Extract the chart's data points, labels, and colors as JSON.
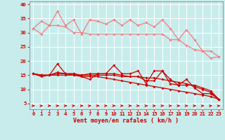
{
  "xlabel": "Vent moyen/en rafales ( km/h )",
  "xlim": [
    -0.5,
    23.5
  ],
  "ylim": [
    3,
    41
  ],
  "yticks": [
    5,
    10,
    15,
    20,
    25,
    30,
    35,
    40
  ],
  "xticks": [
    0,
    1,
    2,
    3,
    4,
    5,
    6,
    7,
    8,
    9,
    10,
    11,
    12,
    13,
    14,
    15,
    16,
    17,
    18,
    19,
    20,
    21,
    22,
    23
  ],
  "background_color": "#c8ecec",
  "grid_color": "#ffffff",
  "line_color_light": "#f08080",
  "line_color_dark": "#cc0000",
  "series_light": [
    [
      31.5,
      34.0,
      32.5,
      37.5,
      32.5,
      34.5,
      29.5,
      34.5,
      34.0,
      33.0,
      34.5,
      32.5,
      34.5,
      32.5,
      33.5,
      32.0,
      34.5,
      31.5,
      27.5,
      31.0,
      27.5,
      23.5,
      21.0,
      21.5
    ],
    [
      31.5,
      29.5,
      32.5,
      32.5,
      32.0,
      30.0,
      30.0,
      29.5,
      29.5,
      29.5,
      29.5,
      29.5,
      29.5,
      29.5,
      29.5,
      29.5,
      29.5,
      27.5,
      27.5,
      25.5,
      24.0,
      23.5,
      23.5,
      21.5
    ]
  ],
  "series_dark": [
    [
      15.5,
      14.5,
      15.0,
      19.0,
      15.5,
      15.5,
      14.5,
      13.5,
      15.5,
      15.5,
      18.5,
      15.5,
      15.5,
      16.5,
      12.0,
      16.5,
      16.5,
      12.0,
      11.5,
      13.5,
      10.5,
      8.5,
      8.5,
      6.5
    ],
    [
      15.5,
      15.0,
      15.0,
      16.0,
      15.5,
      15.5,
      15.0,
      15.5,
      15.5,
      15.5,
      15.5,
      15.0,
      14.5,
      14.5,
      13.0,
      13.0,
      16.5,
      13.5,
      11.5,
      11.5,
      11.5,
      10.5,
      9.5,
      6.5
    ],
    [
      15.5,
      15.0,
      15.0,
      15.5,
      15.5,
      15.0,
      15.0,
      15.0,
      15.0,
      15.0,
      15.0,
      14.5,
      14.5,
      14.5,
      14.0,
      14.0,
      13.5,
      13.0,
      12.5,
      12.0,
      11.0,
      10.0,
      9.0,
      6.5
    ],
    [
      15.5,
      15.0,
      15.0,
      15.0,
      15.0,
      15.0,
      14.5,
      14.5,
      14.5,
      14.0,
      13.5,
      13.0,
      12.5,
      12.0,
      11.5,
      11.0,
      10.5,
      10.0,
      9.5,
      9.0,
      8.5,
      8.0,
      7.5,
      6.5
    ]
  ],
  "arrow_angles_deg": [
    0,
    8,
    0,
    0,
    0,
    8,
    0,
    8,
    0,
    8,
    0,
    8,
    0,
    8,
    0,
    8,
    0,
    8,
    0,
    8,
    0,
    8,
    8,
    15
  ]
}
